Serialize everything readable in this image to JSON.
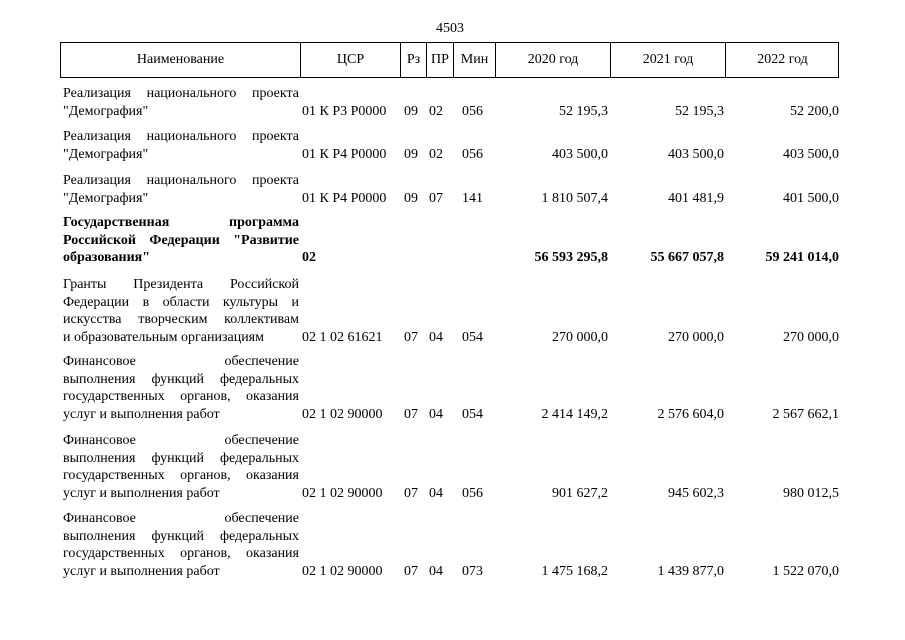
{
  "page_number": "4503",
  "header": {
    "name": "Наименование",
    "csr": "ЦСР",
    "rz": "Рз",
    "pr": "ПР",
    "min": "Мин",
    "y2020": "2020 год",
    "y2021": "2021 год",
    "y2022": "2022 год"
  },
  "rows": [
    {
      "name": [
        "Реализация национального проекта",
        "\"Демография\""
      ],
      "csr": "01 К Р3 Р0000",
      "rz": "09",
      "pr": "02",
      "min": "056",
      "y2020": "52 195,3",
      "y2021": "52 195,3",
      "y2022": "52 200,0"
    },
    {
      "name": [
        "Реализация национального проекта",
        "\"Демография\""
      ],
      "csr": "01 К Р4 Р0000",
      "rz": "09",
      "pr": "02",
      "min": "056",
      "y2020": "403 500,0",
      "y2021": "403 500,0",
      "y2022": "403 500,0"
    },
    {
      "name": [
        "Реализация национального проекта",
        "\"Демография\""
      ],
      "csr": "01 К Р4 Р0000",
      "rz": "09",
      "pr": "07",
      "min": "141",
      "y2020": "1 810 507,4",
      "y2021": "401 481,9",
      "y2022": "401 500,0"
    },
    {
      "name": [
        "Государственная программа",
        "Российской Федерации \"Развитие",
        "образования\""
      ],
      "csr": "02",
      "y2020": "56 593 295,8",
      "y2021": "55 667 057,8",
      "y2022": "59 241 014,0",
      "bold": true
    },
    {
      "name": [
        "Гранты Президента Российской",
        "Федерации в области культуры и",
        "искусства творческим коллективам",
        "и образовательным организациям"
      ],
      "csr": "02 1 02 61621",
      "rz": "07",
      "pr": "04",
      "min": "054",
      "y2020": "270 000,0",
      "y2021": "270 000,0",
      "y2022": "270 000,0"
    },
    {
      "name": [
        "Финансовое обеспечение",
        "выполнения функций федеральных",
        "государственных органов, оказания",
        "услуг и выполнения работ"
      ],
      "csr": "02 1 02 90000",
      "rz": "07",
      "pr": "04",
      "min": "054",
      "y2020": "2 414 149,2",
      "y2021": "2 576 604,0",
      "y2022": "2 567 662,1"
    },
    {
      "name": [
        "Финансовое обеспечение",
        "выполнения функций федеральных",
        "государственных органов, оказания",
        "услуг и выполнения работ"
      ],
      "csr": "02 1 02 90000",
      "rz": "07",
      "pr": "04",
      "min": "056",
      "y2020": "901 627,2",
      "y2021": "945 602,3",
      "y2022": "980 012,5"
    },
    {
      "name": [
        "Финансовое обеспечение",
        "выполнения функций федеральных",
        "государственных органов, оказания",
        "услуг и выполнения работ"
      ],
      "csr": "02 1 02 90000",
      "rz": "07",
      "pr": "04",
      "min": "073",
      "y2020": "1 475 168,2",
      "y2021": "1 439 877,0",
      "y2022": "1 522 070,0"
    }
  ]
}
